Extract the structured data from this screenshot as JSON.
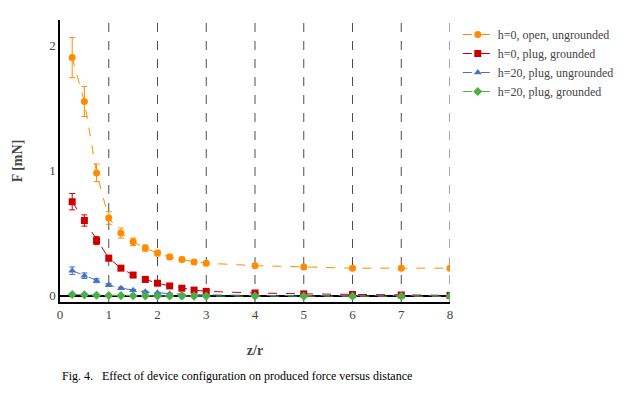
{
  "chart_data": {
    "type": "line",
    "xlabel": "z/r",
    "ylabel": "F [mN]",
    "annotations": [
      "Fig. 4.   Effect of device configuration on produced force versus distance"
    ],
    "xlim": [
      0,
      8
    ],
    "ylim": [
      -0.05,
      2.2
    ],
    "xticks": [
      0,
      1,
      2,
      3,
      4,
      5,
      6,
      7,
      8
    ],
    "yticks": [
      0,
      1,
      2
    ],
    "vlines": [
      1,
      2,
      3,
      4,
      5,
      6,
      7,
      8
    ],
    "grid": false,
    "legend": "right",
    "x": [
      0.25,
      0.5,
      0.75,
      1.0,
      1.25,
      1.5,
      1.75,
      2.0,
      2.25,
      2.5,
      2.75,
      3.0,
      4.0,
      5.0,
      6.0,
      7.0,
      8.0
    ],
    "series": [
      {
        "name": "h=0, open, ungrounded",
        "color": "#FF8C00",
        "line_style": "dash",
        "marker": "circle",
        "values": [
          1.9,
          1.55,
          0.98,
          0.62,
          0.5,
          0.43,
          0.38,
          0.34,
          0.31,
          0.29,
          0.27,
          0.26,
          0.24,
          0.23,
          0.22,
          0.22,
          0.22
        ],
        "yerr": [
          0.16,
          0.12,
          0.07,
          0.05,
          0.04,
          0.03,
          0.025,
          0.022,
          0.02,
          0.018,
          0.016,
          0.015,
          0.015,
          0.015,
          0.015,
          0.015,
          0.015
        ]
      },
      {
        "name": "h=0, plug, grounded",
        "color": "#CC0000",
        "line_style": "dash",
        "marker": "square",
        "values": [
          0.75,
          0.6,
          0.44,
          0.3,
          0.22,
          0.165,
          0.13,
          0.1,
          0.078,
          0.06,
          0.045,
          0.035,
          0.022,
          0.015,
          0.01,
          0.006,
          0.003
        ],
        "yerr": [
          0.065,
          0.045,
          0.032,
          0.022,
          0.016,
          0.012,
          0.01,
          0.009,
          0.007,
          0.006,
          0.005,
          0.004,
          0.003,
          0.002,
          0.002,
          0.002,
          0.002
        ]
      },
      {
        "name": "h=20, plug, ungrounded",
        "color": "#4472C4",
        "line_style": "dash",
        "marker": "triangle-up",
        "values": [
          0.2,
          0.16,
          0.12,
          0.085,
          0.06,
          0.044,
          0.032,
          0.023,
          0.016,
          0.012,
          0.008,
          0.006,
          0.003,
          0.001,
          0.0,
          0.0,
          0.0
        ],
        "yerr": [
          0.03,
          0.022,
          0.016,
          0.011,
          0.008,
          0.006,
          0.005,
          0.004,
          0.003,
          0.003,
          0.002,
          0.002,
          0.001,
          0.001,
          0.001,
          0.001,
          0.001
        ]
      },
      {
        "name": "h=20, plug, grounded",
        "color": "#4DAF4A",
        "line_style": "dash",
        "marker": "diamond",
        "values": [
          0.01,
          0.007,
          0.004,
          0.002,
          0.001,
          0.0,
          -0.001,
          -0.002,
          -0.002,
          -0.003,
          -0.003,
          -0.003,
          -0.003,
          -0.004,
          -0.004,
          -0.004,
          -0.004
        ],
        "yerr": [
          0.004,
          0.003,
          0.003,
          0.002,
          0.002,
          0.002,
          0.002,
          0.002,
          0.002,
          0.002,
          0.002,
          0.002,
          0.002,
          0.002,
          0.002,
          0.002,
          0.002
        ]
      }
    ]
  }
}
